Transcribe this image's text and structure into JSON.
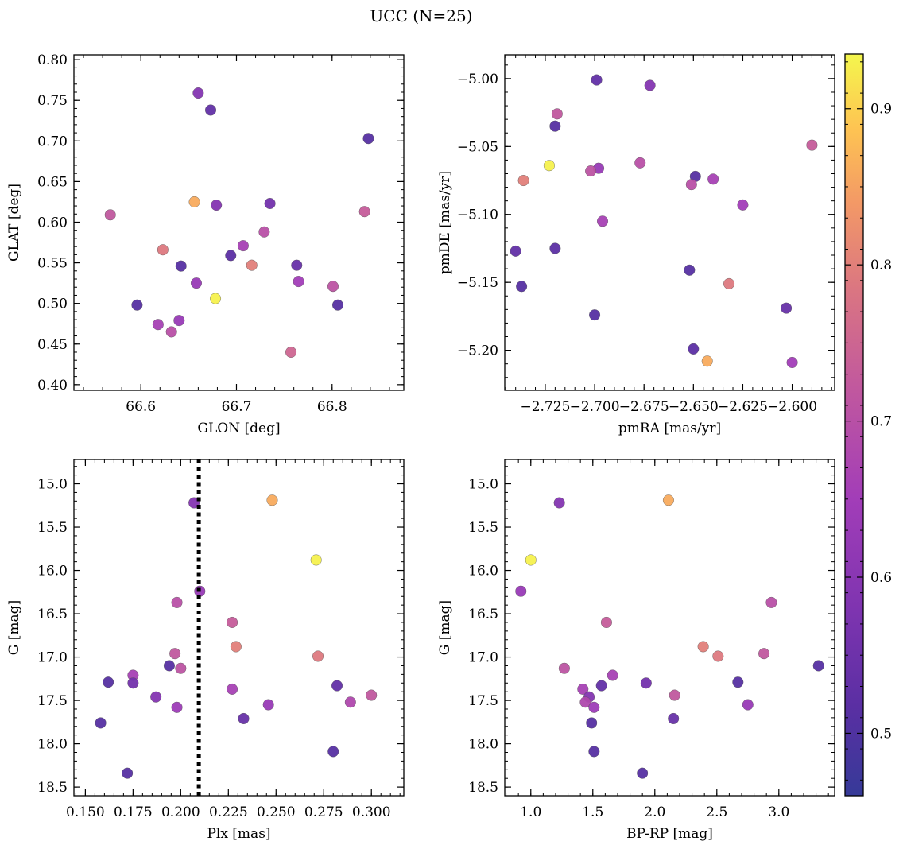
{
  "figure": {
    "title": "UCC (N=25)"
  },
  "colorbar": {
    "ticks": [
      0.5,
      0.6,
      0.7,
      0.8,
      0.9
    ],
    "tick_labels": [
      "0.5",
      "0.6",
      "0.7",
      "0.8",
      "0.9"
    ],
    "range": [
      0.46,
      0.935
    ],
    "colormap": "plasma"
  },
  "chart_data": [
    {
      "type": "scatter",
      "xlabel": "GLON [deg]",
      "ylabel": "GLAT [deg]",
      "xlim": [
        66.53,
        66.875
      ],
      "ylim": [
        0.393,
        0.806
      ],
      "y_inverted": false,
      "xticks": [
        66.6,
        66.7,
        66.8
      ],
      "xtick_labels": [
        "66.6",
        "66.7",
        "66.8"
      ],
      "yticks": [
        0.4,
        0.45,
        0.5,
        0.55,
        0.6,
        0.65,
        0.7,
        0.75,
        0.8
      ],
      "ytick_labels": [
        "0.40",
        "0.45",
        "0.50",
        "0.55",
        "0.60",
        "0.65",
        "0.70",
        "0.75",
        "0.80"
      ],
      "points": [
        {
          "x": 66.66,
          "y": 0.759,
          "c": 0.59
        },
        {
          "x": 66.673,
          "y": 0.738,
          "c": 0.53
        },
        {
          "x": 66.838,
          "y": 0.703,
          "c": 0.51
        },
        {
          "x": 66.656,
          "y": 0.625,
          "c": 0.86
        },
        {
          "x": 66.735,
          "y": 0.623,
          "c": 0.56
        },
        {
          "x": 66.679,
          "y": 0.621,
          "c": 0.59
        },
        {
          "x": 66.568,
          "y": 0.609,
          "c": 0.72
        },
        {
          "x": 66.834,
          "y": 0.613,
          "c": 0.73
        },
        {
          "x": 66.729,
          "y": 0.588,
          "c": 0.7
        },
        {
          "x": 66.707,
          "y": 0.571,
          "c": 0.66
        },
        {
          "x": 66.623,
          "y": 0.566,
          "c": 0.79
        },
        {
          "x": 66.694,
          "y": 0.559,
          "c": 0.52
        },
        {
          "x": 66.716,
          "y": 0.547,
          "c": 0.8
        },
        {
          "x": 66.763,
          "y": 0.547,
          "c": 0.54
        },
        {
          "x": 66.642,
          "y": 0.546,
          "c": 0.51
        },
        {
          "x": 66.765,
          "y": 0.527,
          "c": 0.65
        },
        {
          "x": 66.658,
          "y": 0.525,
          "c": 0.63
        },
        {
          "x": 66.801,
          "y": 0.521,
          "c": 0.71
        },
        {
          "x": 66.678,
          "y": 0.506,
          "c": 0.93
        },
        {
          "x": 66.596,
          "y": 0.498,
          "c": 0.51
        },
        {
          "x": 66.806,
          "y": 0.498,
          "c": 0.51
        },
        {
          "x": 66.64,
          "y": 0.479,
          "c": 0.63
        },
        {
          "x": 66.618,
          "y": 0.474,
          "c": 0.66
        },
        {
          "x": 66.632,
          "y": 0.465,
          "c": 0.7
        },
        {
          "x": 66.757,
          "y": 0.44,
          "c": 0.75
        }
      ]
    },
    {
      "type": "scatter",
      "xlabel": "pmRA [mas/yr]",
      "ylabel": "pmDE [mas/yr]",
      "xlim": [
        -2.7455,
        -2.5785
      ],
      "ylim": [
        -5.2295,
        -4.9825
      ],
      "y_inverted": false,
      "xticks": [
        -2.725,
        -2.7,
        -2.675,
        -2.65,
        -2.625,
        -2.6
      ],
      "xtick_labels": [
        "−2.725",
        "−2.700",
        "−2.675",
        "−2.650",
        "−2.625",
        "−2.600"
      ],
      "yticks": [
        -5.2,
        -5.15,
        -5.1,
        -5.05,
        -5.0
      ],
      "ytick_labels": [
        "−5.20",
        "−5.15",
        "−5.10",
        "−5.05",
        "−5.00"
      ],
      "points": [
        {
          "x": -2.699,
          "y": -5.001,
          "c": 0.53
        },
        {
          "x": -2.672,
          "y": -5.005,
          "c": 0.59
        },
        {
          "x": -2.719,
          "y": -5.026,
          "c": 0.72
        },
        {
          "x": -2.72,
          "y": -5.035,
          "c": 0.51
        },
        {
          "x": -2.59,
          "y": -5.049,
          "c": 0.73
        },
        {
          "x": -2.723,
          "y": -5.064,
          "c": 0.93
        },
        {
          "x": -2.677,
          "y": -5.062,
          "c": 0.7
        },
        {
          "x": -2.698,
          "y": -5.066,
          "c": 0.63
        },
        {
          "x": -2.702,
          "y": -5.068,
          "c": 0.71
        },
        {
          "x": -2.649,
          "y": -5.072,
          "c": 0.51
        },
        {
          "x": -2.736,
          "y": -5.075,
          "c": 0.8
        },
        {
          "x": -2.64,
          "y": -5.074,
          "c": 0.66
        },
        {
          "x": -2.651,
          "y": -5.078,
          "c": 0.7
        },
        {
          "x": -2.625,
          "y": -5.093,
          "c": 0.65
        },
        {
          "x": -2.696,
          "y": -5.105,
          "c": 0.66
        },
        {
          "x": -2.74,
          "y": -5.127,
          "c": 0.53
        },
        {
          "x": -2.72,
          "y": -5.125,
          "c": 0.52
        },
        {
          "x": -2.652,
          "y": -5.141,
          "c": 0.51
        },
        {
          "x": -2.737,
          "y": -5.153,
          "c": 0.51
        },
        {
          "x": -2.632,
          "y": -5.151,
          "c": 0.79
        },
        {
          "x": -2.603,
          "y": -5.169,
          "c": 0.54
        },
        {
          "x": -2.7,
          "y": -5.174,
          "c": 0.51
        },
        {
          "x": -2.65,
          "y": -5.199,
          "c": 0.52
        },
        {
          "x": -2.643,
          "y": -5.208,
          "c": 0.86
        },
        {
          "x": -2.6,
          "y": -5.209,
          "c": 0.65
        }
      ]
    },
    {
      "type": "scatter",
      "xlabel": "Plx [mas]",
      "ylabel": "G [mag]",
      "xlim": [
        0.144,
        0.317
      ],
      "ylim": [
        18.6,
        14.72
      ],
      "y_inverted": true,
      "vline": {
        "x": 0.2095,
        "style": "dotted"
      },
      "xticks": [
        0.15,
        0.175,
        0.2,
        0.225,
        0.25,
        0.275,
        0.3
      ],
      "xtick_labels": [
        "0.150",
        "0.175",
        "0.200",
        "0.225",
        "0.250",
        "0.275",
        "0.300"
      ],
      "yticks": [
        15.0,
        15.5,
        16.0,
        16.5,
        17.0,
        17.5,
        18.0,
        18.5
      ],
      "ytick_labels": [
        "15.0",
        "15.5",
        "16.0",
        "16.5",
        "17.0",
        "17.5",
        "18.0",
        "18.5"
      ],
      "points": [
        {
          "x": 0.207,
          "y": 15.22,
          "c": 0.59
        },
        {
          "x": 0.248,
          "y": 15.19,
          "c": 0.86
        },
        {
          "x": 0.271,
          "y": 15.88,
          "c": 0.93
        },
        {
          "x": 0.21,
          "y": 16.24,
          "c": 0.63
        },
        {
          "x": 0.198,
          "y": 16.37,
          "c": 0.7
        },
        {
          "x": 0.227,
          "y": 16.6,
          "c": 0.73
        },
        {
          "x": 0.229,
          "y": 16.88,
          "c": 0.8
        },
        {
          "x": 0.197,
          "y": 16.96,
          "c": 0.72
        },
        {
          "x": 0.272,
          "y": 16.99,
          "c": 0.79
        },
        {
          "x": 0.194,
          "y": 17.1,
          "c": 0.51
        },
        {
          "x": 0.2,
          "y": 17.13,
          "c": 0.71
        },
        {
          "x": 0.175,
          "y": 17.21,
          "c": 0.66
        },
        {
          "x": 0.162,
          "y": 17.29,
          "c": 0.51
        },
        {
          "x": 0.175,
          "y": 17.3,
          "c": 0.56
        },
        {
          "x": 0.282,
          "y": 17.33,
          "c": 0.53
        },
        {
          "x": 0.227,
          "y": 17.37,
          "c": 0.66
        },
        {
          "x": 0.3,
          "y": 17.44,
          "c": 0.72
        },
        {
          "x": 0.187,
          "y": 17.46,
          "c": 0.59
        },
        {
          "x": 0.289,
          "y": 17.52,
          "c": 0.68
        },
        {
          "x": 0.246,
          "y": 17.55,
          "c": 0.63
        },
        {
          "x": 0.198,
          "y": 17.58,
          "c": 0.64
        },
        {
          "x": 0.233,
          "y": 17.71,
          "c": 0.54
        },
        {
          "x": 0.158,
          "y": 17.76,
          "c": 0.51
        },
        {
          "x": 0.28,
          "y": 18.09,
          "c": 0.51
        },
        {
          "x": 0.172,
          "y": 18.34,
          "c": 0.51
        }
      ]
    },
    {
      "type": "scatter",
      "xlabel": "BP-RP [mag]",
      "ylabel": "G [mag]",
      "xlim": [
        0.79,
        3.45
      ],
      "ylim": [
        18.6,
        14.72
      ],
      "y_inverted": true,
      "xticks": [
        1.0,
        1.5,
        2.0,
        2.5,
        3.0
      ],
      "xtick_labels": [
        "1.0",
        "1.5",
        "2.0",
        "2.5",
        "3.0"
      ],
      "yticks": [
        15.0,
        15.5,
        16.0,
        16.5,
        17.0,
        17.5,
        18.0,
        18.5
      ],
      "ytick_labels": [
        "15.0",
        "15.5",
        "16.0",
        "16.5",
        "17.0",
        "17.5",
        "18.0",
        "18.5"
      ],
      "points": [
        {
          "x": 1.23,
          "y": 15.22,
          "c": 0.59
        },
        {
          "x": 2.11,
          "y": 15.19,
          "c": 0.86
        },
        {
          "x": 1.0,
          "y": 15.88,
          "c": 0.93
        },
        {
          "x": 0.92,
          "y": 16.24,
          "c": 0.63
        },
        {
          "x": 2.94,
          "y": 16.37,
          "c": 0.7
        },
        {
          "x": 1.61,
          "y": 16.6,
          "c": 0.73
        },
        {
          "x": 2.39,
          "y": 16.88,
          "c": 0.8
        },
        {
          "x": 2.88,
          "y": 16.96,
          "c": 0.72
        },
        {
          "x": 2.51,
          "y": 16.99,
          "c": 0.79
        },
        {
          "x": 3.32,
          "y": 17.1,
          "c": 0.51
        },
        {
          "x": 1.27,
          "y": 17.13,
          "c": 0.71
        },
        {
          "x": 1.66,
          "y": 17.21,
          "c": 0.66
        },
        {
          "x": 2.67,
          "y": 17.29,
          "c": 0.51
        },
        {
          "x": 1.93,
          "y": 17.3,
          "c": 0.56
        },
        {
          "x": 1.57,
          "y": 17.33,
          "c": 0.53
        },
        {
          "x": 1.42,
          "y": 17.37,
          "c": 0.66
        },
        {
          "x": 2.16,
          "y": 17.44,
          "c": 0.72
        },
        {
          "x": 1.47,
          "y": 17.46,
          "c": 0.59
        },
        {
          "x": 1.44,
          "y": 17.52,
          "c": 0.68
        },
        {
          "x": 2.75,
          "y": 17.55,
          "c": 0.63
        },
        {
          "x": 1.51,
          "y": 17.58,
          "c": 0.64
        },
        {
          "x": 2.15,
          "y": 17.71,
          "c": 0.54
        },
        {
          "x": 1.49,
          "y": 17.76,
          "c": 0.51
        },
        {
          "x": 1.51,
          "y": 18.09,
          "c": 0.51
        },
        {
          "x": 1.9,
          "y": 18.34,
          "c": 0.51
        }
      ]
    }
  ]
}
